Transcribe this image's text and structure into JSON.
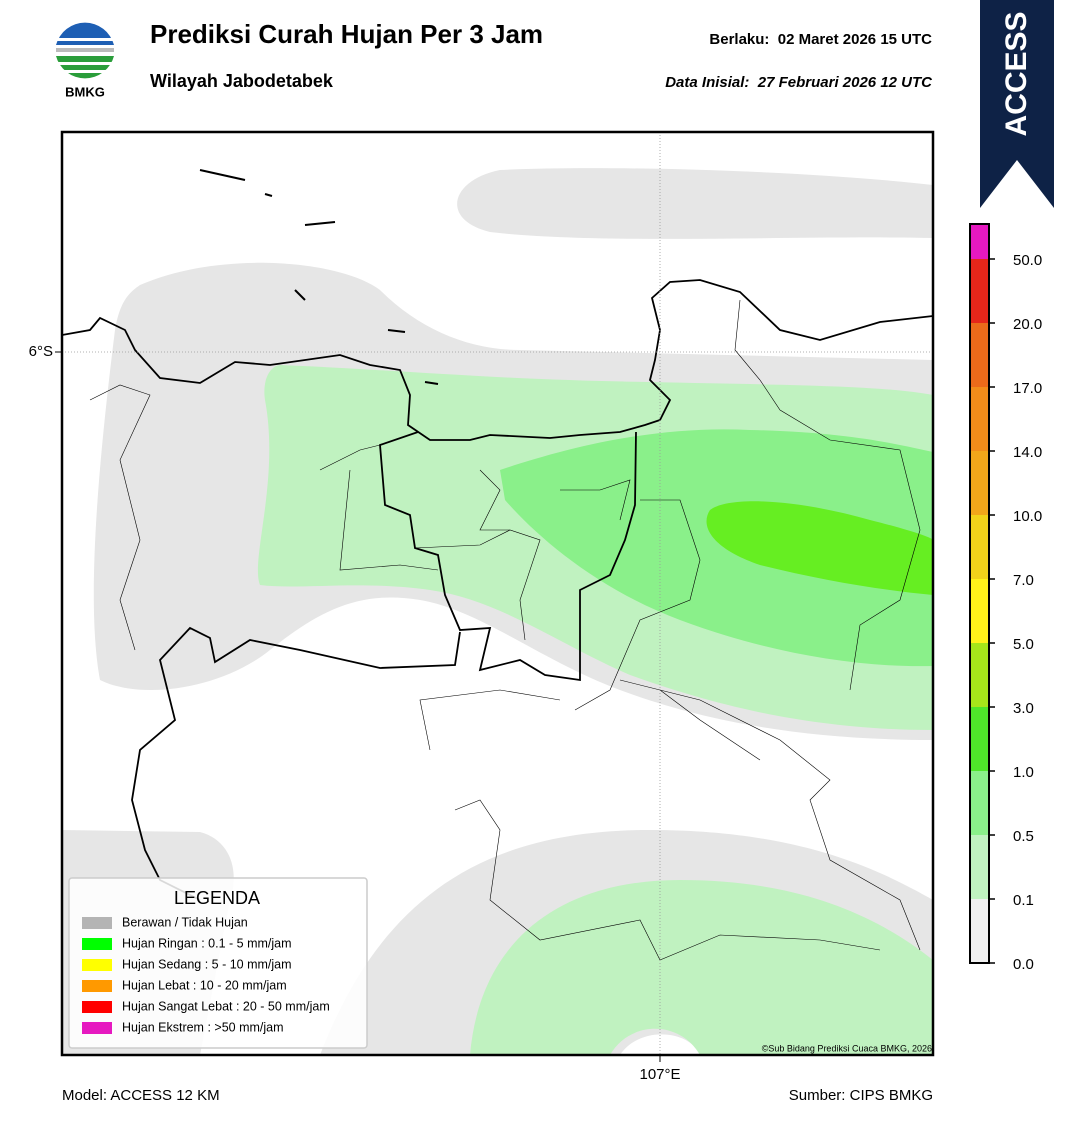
{
  "header": {
    "logo": "BMKG",
    "title": "Prediksi Curah Hujan Per 3 Jam",
    "subtitle": "Wilayah Jabodetabek",
    "valid": "Berlaku:  02 Maret 2026 15 UTC",
    "initial": "Data Inisial:  27 Februari 2026 12 UTC",
    "badge": "ACCESS"
  },
  "map": {
    "lat_label": "6°S",
    "lon_label": "107°E",
    "copyright": "©Sub Bidang Prediksi Cuaca BMKG, 2026"
  },
  "legend": {
    "title": "LEGENDA",
    "items": [
      {
        "label": "Berawan / Tidak Hujan",
        "color": "#b4b4b4"
      },
      {
        "label": "Hujan Ringan : 0.1 - 5 mm/jam",
        "color": "#00ff00"
      },
      {
        "label": "Hujan Sedang : 5 - 10 mm/jam",
        "color": "#ffff00"
      },
      {
        "label": "Hujan Lebat : 10 - 20 mm/jam",
        "color": "#ff9900"
      },
      {
        "label": "Hujan Sangat Lebat : 20 - 50 mm/jam",
        "color": "#ff0000"
      },
      {
        "label": "Hujan Ekstrem : >50 mm/jam",
        "color": "#e619c0"
      }
    ]
  },
  "colorbar": {
    "labels": [
      "0.0",
      "0.1",
      "0.5",
      "1.0",
      "3.0",
      "5.0",
      "7.0",
      "10.0",
      "14.0",
      "17.0",
      "20.0",
      "50.0"
    ],
    "colors": [
      "#f0f0f0",
      "#c0f2c0",
      "#8af08a",
      "#4fe62a",
      "#a6e61a",
      "#fff21a",
      "#f2d21a",
      "#f2a61a",
      "#f28c1a",
      "#ec6a1a",
      "#e6261a",
      "#e619c0"
    ]
  },
  "footer": {
    "model": "Model: ACCESS 12 KM",
    "source": "Sumber: CIPS BMKG"
  }
}
